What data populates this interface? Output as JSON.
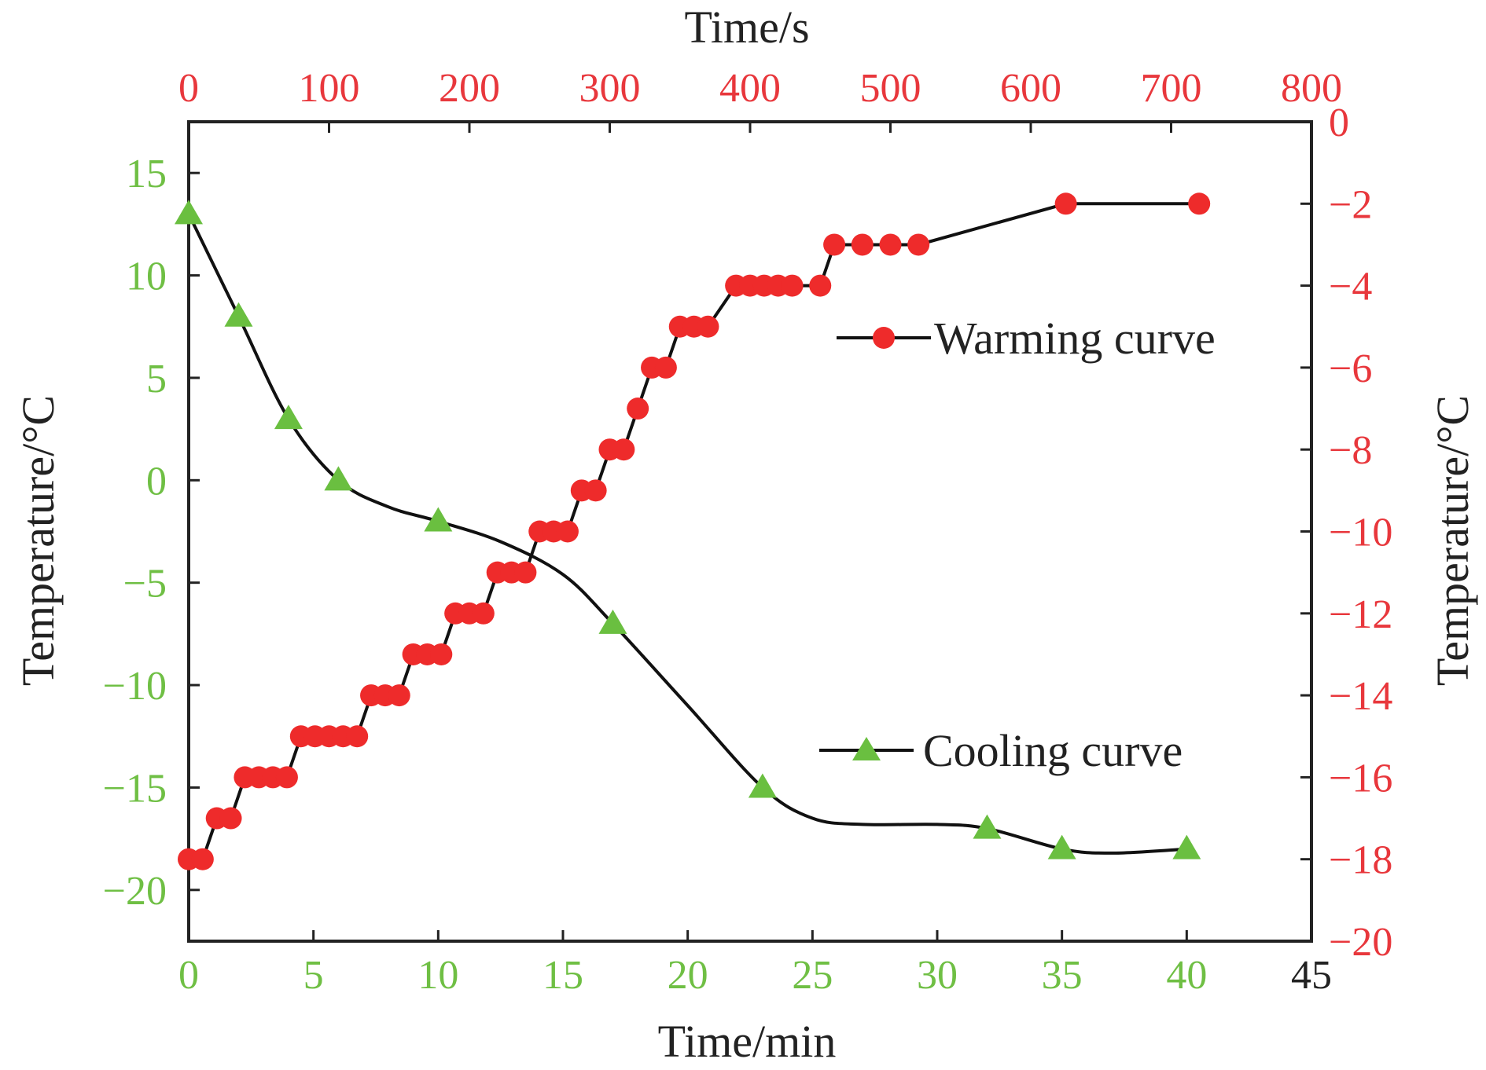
{
  "colors": {
    "green_axis": "#6fbf44",
    "red_axis": "#e8373c",
    "marker_green": "#6abf40",
    "marker_red": "#ee2b2b",
    "line": "#111111",
    "frame": "#222222",
    "text": "#222222"
  },
  "chart_data": {
    "type": "line",
    "x_bottom": {
      "label": "Time/min",
      "range": [
        0,
        45
      ],
      "ticks": [
        "0",
        "5",
        "10",
        "15",
        "20",
        "25",
        "30",
        "35",
        "40",
        "45"
      ],
      "tick_values": [
        0,
        5,
        10,
        15,
        20,
        25,
        30,
        35,
        40,
        45
      ],
      "tick_color": "green, 45 in black"
    },
    "x_top": {
      "label": "Time/s",
      "range": [
        0,
        800
      ],
      "ticks": [
        "0",
        "100",
        "200",
        "300",
        "400",
        "500",
        "600",
        "700",
        "800"
      ],
      "tick_values": [
        0,
        100,
        200,
        300,
        400,
        500,
        600,
        700,
        800
      ],
      "tick_color": "red"
    },
    "y_left": {
      "label": "Temperature/°C",
      "range": [
        -22.5,
        17.5
      ],
      "ticks": [
        "−20",
        "−15",
        "−10",
        "−5",
        "0",
        "5",
        "10",
        "15"
      ],
      "tick_values": [
        -20,
        -15,
        -10,
        -5,
        0,
        5,
        10,
        15
      ],
      "tick_color": "green"
    },
    "y_right": {
      "label": "Temperature/°C",
      "range": [
        -20,
        0
      ],
      "ticks": [
        "−20",
        "−18",
        "−16",
        "−14",
        "−12",
        "−10",
        "−8",
        "−6",
        "−4",
        "−2",
        "0"
      ],
      "tick_values": [
        -20,
        -18,
        -16,
        -14,
        -12,
        -10,
        -8,
        -6,
        -4,
        -2,
        0
      ],
      "tick_color": "red"
    },
    "grid": false,
    "series": [
      {
        "name": "Cooling curve",
        "axes": "bottom-left",
        "marker": "triangle",
        "color": "green",
        "x": [
          0,
          2,
          4,
          6,
          10,
          17,
          23,
          32,
          35,
          40
        ],
        "y": [
          13,
          8,
          3,
          0,
          -2,
          -7,
          -15,
          -17,
          -18,
          -18
        ],
        "line_x": [
          0,
          2,
          4,
          6,
          8,
          10,
          12.5,
          15,
          17,
          20,
          23,
          25,
          27,
          30,
          32,
          35,
          37,
          40
        ],
        "line_y": [
          13,
          8,
          3,
          0,
          -1.3,
          -2,
          -3,
          -4.6,
          -7,
          -11,
          -15,
          -16.5,
          -16.8,
          -16.8,
          -17,
          -18,
          -18.2,
          -18
        ]
      },
      {
        "name": "Warming curve",
        "axes": "top-right",
        "marker": "circle",
        "color": "red",
        "x": [
          0,
          10,
          20,
          30,
          40,
          50,
          60,
          70,
          80,
          90,
          100,
          110,
          120,
          130,
          140,
          150,
          160,
          170,
          180,
          190,
          200,
          210,
          220,
          230,
          240,
          250,
          260,
          270,
          280,
          290,
          300,
          310,
          320,
          330,
          340,
          350,
          360,
          370,
          390,
          400,
          410,
          420,
          430,
          450,
          460,
          480,
          500,
          520,
          625,
          720
        ],
        "y": [
          -18,
          -18,
          -17,
          -17,
          -16,
          -16,
          -16,
          -16,
          -15,
          -15,
          -15,
          -15,
          -15,
          -14,
          -14,
          -14,
          -13,
          -13,
          -13,
          -12,
          -12,
          -12,
          -11,
          -11,
          -11,
          -10,
          -10,
          -10,
          -9,
          -9,
          -8,
          -8,
          -7,
          -6,
          -6,
          -5,
          -5,
          -5,
          -4,
          -4,
          -4,
          -4,
          -4,
          -4,
          -3,
          -3,
          -3,
          -3,
          -2,
          -2
        ]
      }
    ],
    "legend": [
      {
        "label": "Warming curve",
        "marker": "circle",
        "placement": "upper-right"
      },
      {
        "label": "Cooling curve",
        "marker": "triangle",
        "placement": "lower-right"
      }
    ]
  }
}
